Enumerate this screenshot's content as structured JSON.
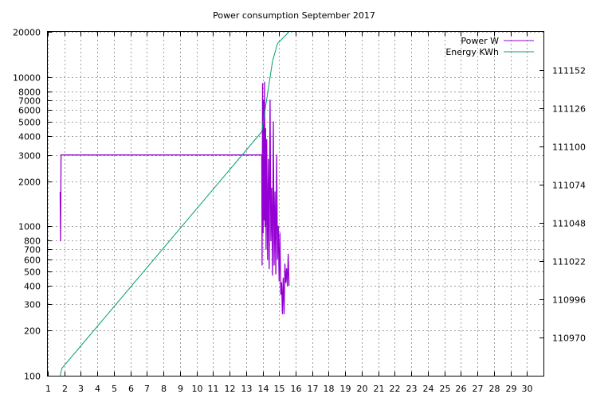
{
  "chart_data": {
    "type": "line",
    "title": "Power consumption September 2017",
    "xlabel": "",
    "ylabel": "",
    "y2label": "",
    "xlim": [
      1,
      31
    ],
    "x_ticks": [
      1,
      2,
      3,
      4,
      5,
      6,
      7,
      8,
      9,
      10,
      11,
      12,
      13,
      14,
      15,
      16,
      17,
      18,
      19,
      20,
      21,
      22,
      23,
      24,
      25,
      26,
      27,
      28,
      29,
      30
    ],
    "ylim": [
      100,
      20000
    ],
    "y_scale": "log",
    "y_ticks": [
      100,
      200,
      300,
      400,
      500,
      600,
      700,
      800,
      1000,
      2000,
      3000,
      4000,
      5000,
      6000,
      7000,
      8000,
      10000,
      20000
    ],
    "y_tick_labels": [
      "100",
      "200",
      "300",
      "400",
      "500",
      "600",
      "700",
      "800",
      "1000",
      "2000",
      "3000",
      "4000",
      "5000",
      "6000",
      "7000",
      "8000",
      "10000",
      "20000"
    ],
    "y2lim": [
      110944,
      111178
    ],
    "y2_ticks": [
      110970,
      110996,
      111022,
      111048,
      111074,
      111100,
      111126,
      111152
    ],
    "grid": true,
    "legend_position": "top-right",
    "colors": {
      "power": "#9400d3",
      "energy": "#009e73"
    },
    "series": [
      {
        "name": "Power W",
        "axis": "y",
        "points": [
          [
            1.75,
            1700
          ],
          [
            1.77,
            800
          ],
          [
            1.8,
            3000
          ],
          [
            13.95,
            3000
          ],
          [
            13.97,
            550
          ],
          [
            14.0,
            9000
          ],
          [
            14.03,
            900
          ],
          [
            14.06,
            7000
          ],
          [
            14.09,
            1100
          ],
          [
            14.12,
            9200
          ],
          [
            14.15,
            1000
          ],
          [
            14.18,
            4500
          ],
          [
            14.21,
            700
          ],
          [
            14.25,
            3800
          ],
          [
            14.3,
            600
          ],
          [
            14.35,
            2800
          ],
          [
            14.4,
            520
          ],
          [
            14.45,
            7000
          ],
          [
            14.5,
            800
          ],
          [
            14.55,
            1800
          ],
          [
            14.6,
            470
          ],
          [
            14.65,
            5000
          ],
          [
            14.7,
            550
          ],
          [
            14.75,
            1700
          ],
          [
            14.8,
            480
          ],
          [
            14.85,
            3000
          ],
          [
            14.9,
            600
          ],
          [
            14.95,
            1000
          ],
          [
            15.0,
            430
          ],
          [
            15.05,
            900
          ],
          [
            15.1,
            350
          ],
          [
            15.15,
            420
          ],
          [
            15.2,
            260
          ],
          [
            15.25,
            450
          ],
          [
            15.3,
            260
          ],
          [
            15.35,
            560
          ],
          [
            15.4,
            420
          ],
          [
            15.45,
            520
          ],
          [
            15.5,
            400
          ],
          [
            15.55,
            650
          ],
          [
            15.6,
            400
          ]
        ]
      },
      {
        "name": "Energy KWh",
        "axis": "y2",
        "points": [
          [
            1.75,
            110944
          ],
          [
            1.85,
            110949
          ],
          [
            13.95,
            111110
          ],
          [
            14.3,
            111136
          ],
          [
            14.6,
            111158
          ],
          [
            14.9,
            111170
          ],
          [
            15.6,
            111178
          ]
        ]
      }
    ]
  }
}
